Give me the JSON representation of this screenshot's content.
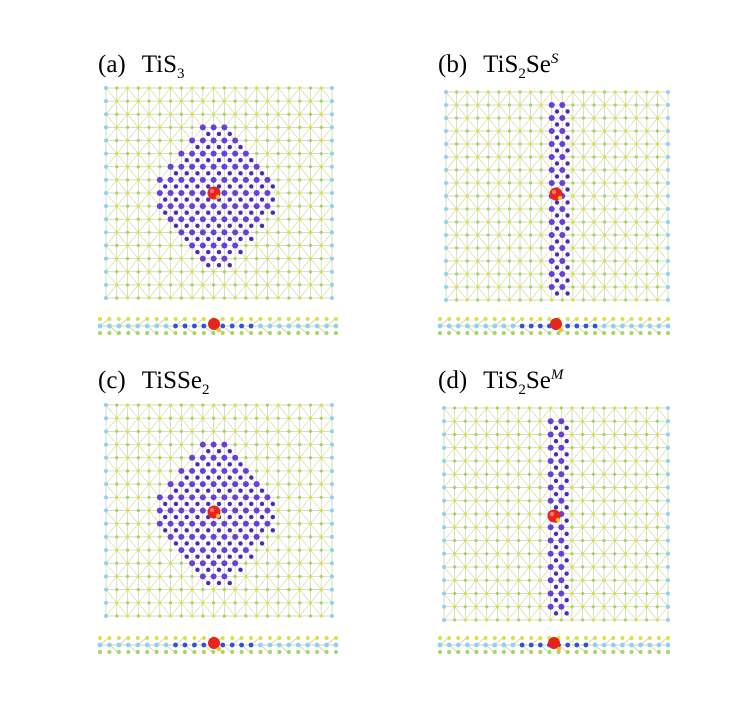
{
  "figure": {
    "panels": [
      {
        "id": "a",
        "letter": "(a)",
        "formula": {
          "base": "TiS",
          "sub1": "3",
          "mid": "",
          "sub2": "",
          "sup": ""
        },
        "columns": "wide",
        "colors": {
          "atom_light_blue": "#8ed3ee",
          "atom_yellow": "#d9e04a",
          "atom_green": "#a6d65a",
          "defect_purple": "#6a3fd6",
          "adsorbate_red": "#e8231c",
          "adsorbate_blue": "#2f52d8"
        }
      },
      {
        "id": "b",
        "letter": "(b)",
        "formula": {
          "base": "TiS",
          "sub1": "2",
          "mid": "Se",
          "sub2": "",
          "sup": "S"
        },
        "columns": "narrow",
        "colors": {
          "atom_light_blue": "#8ed3ee",
          "atom_yellow": "#d9e04a",
          "atom_green": "#a6d65a",
          "defect_purple": "#6a3fd6",
          "adsorbate_red": "#e8231c",
          "adsorbate_blue": "#2f52d8"
        }
      },
      {
        "id": "c",
        "letter": "(c)",
        "formula": {
          "base": "TiSSe",
          "sub1": "2",
          "mid": "",
          "sub2": "",
          "sup": ""
        },
        "columns": "wide",
        "colors": {
          "atom_light_blue": "#8ed3ee",
          "atom_yellow": "#d9e04a",
          "atom_green": "#a6d65a",
          "defect_purple": "#6a3fd6",
          "adsorbate_red": "#e8231c",
          "adsorbate_blue": "#2f52d8"
        }
      },
      {
        "id": "d",
        "letter": "(d)",
        "formula": {
          "base": "TiS",
          "sub1": "2",
          "mid": "Se",
          "sub2": "",
          "sup": "M"
        },
        "columns": "narrow",
        "colors": {
          "atom_light_blue": "#8ed3ee",
          "atom_yellow": "#d9e04a",
          "atom_green": "#a6d65a",
          "defect_purple": "#6a3fd6",
          "adsorbate_red": "#e8231c",
          "adsorbate_blue": "#2f52d8"
        }
      }
    ]
  }
}
